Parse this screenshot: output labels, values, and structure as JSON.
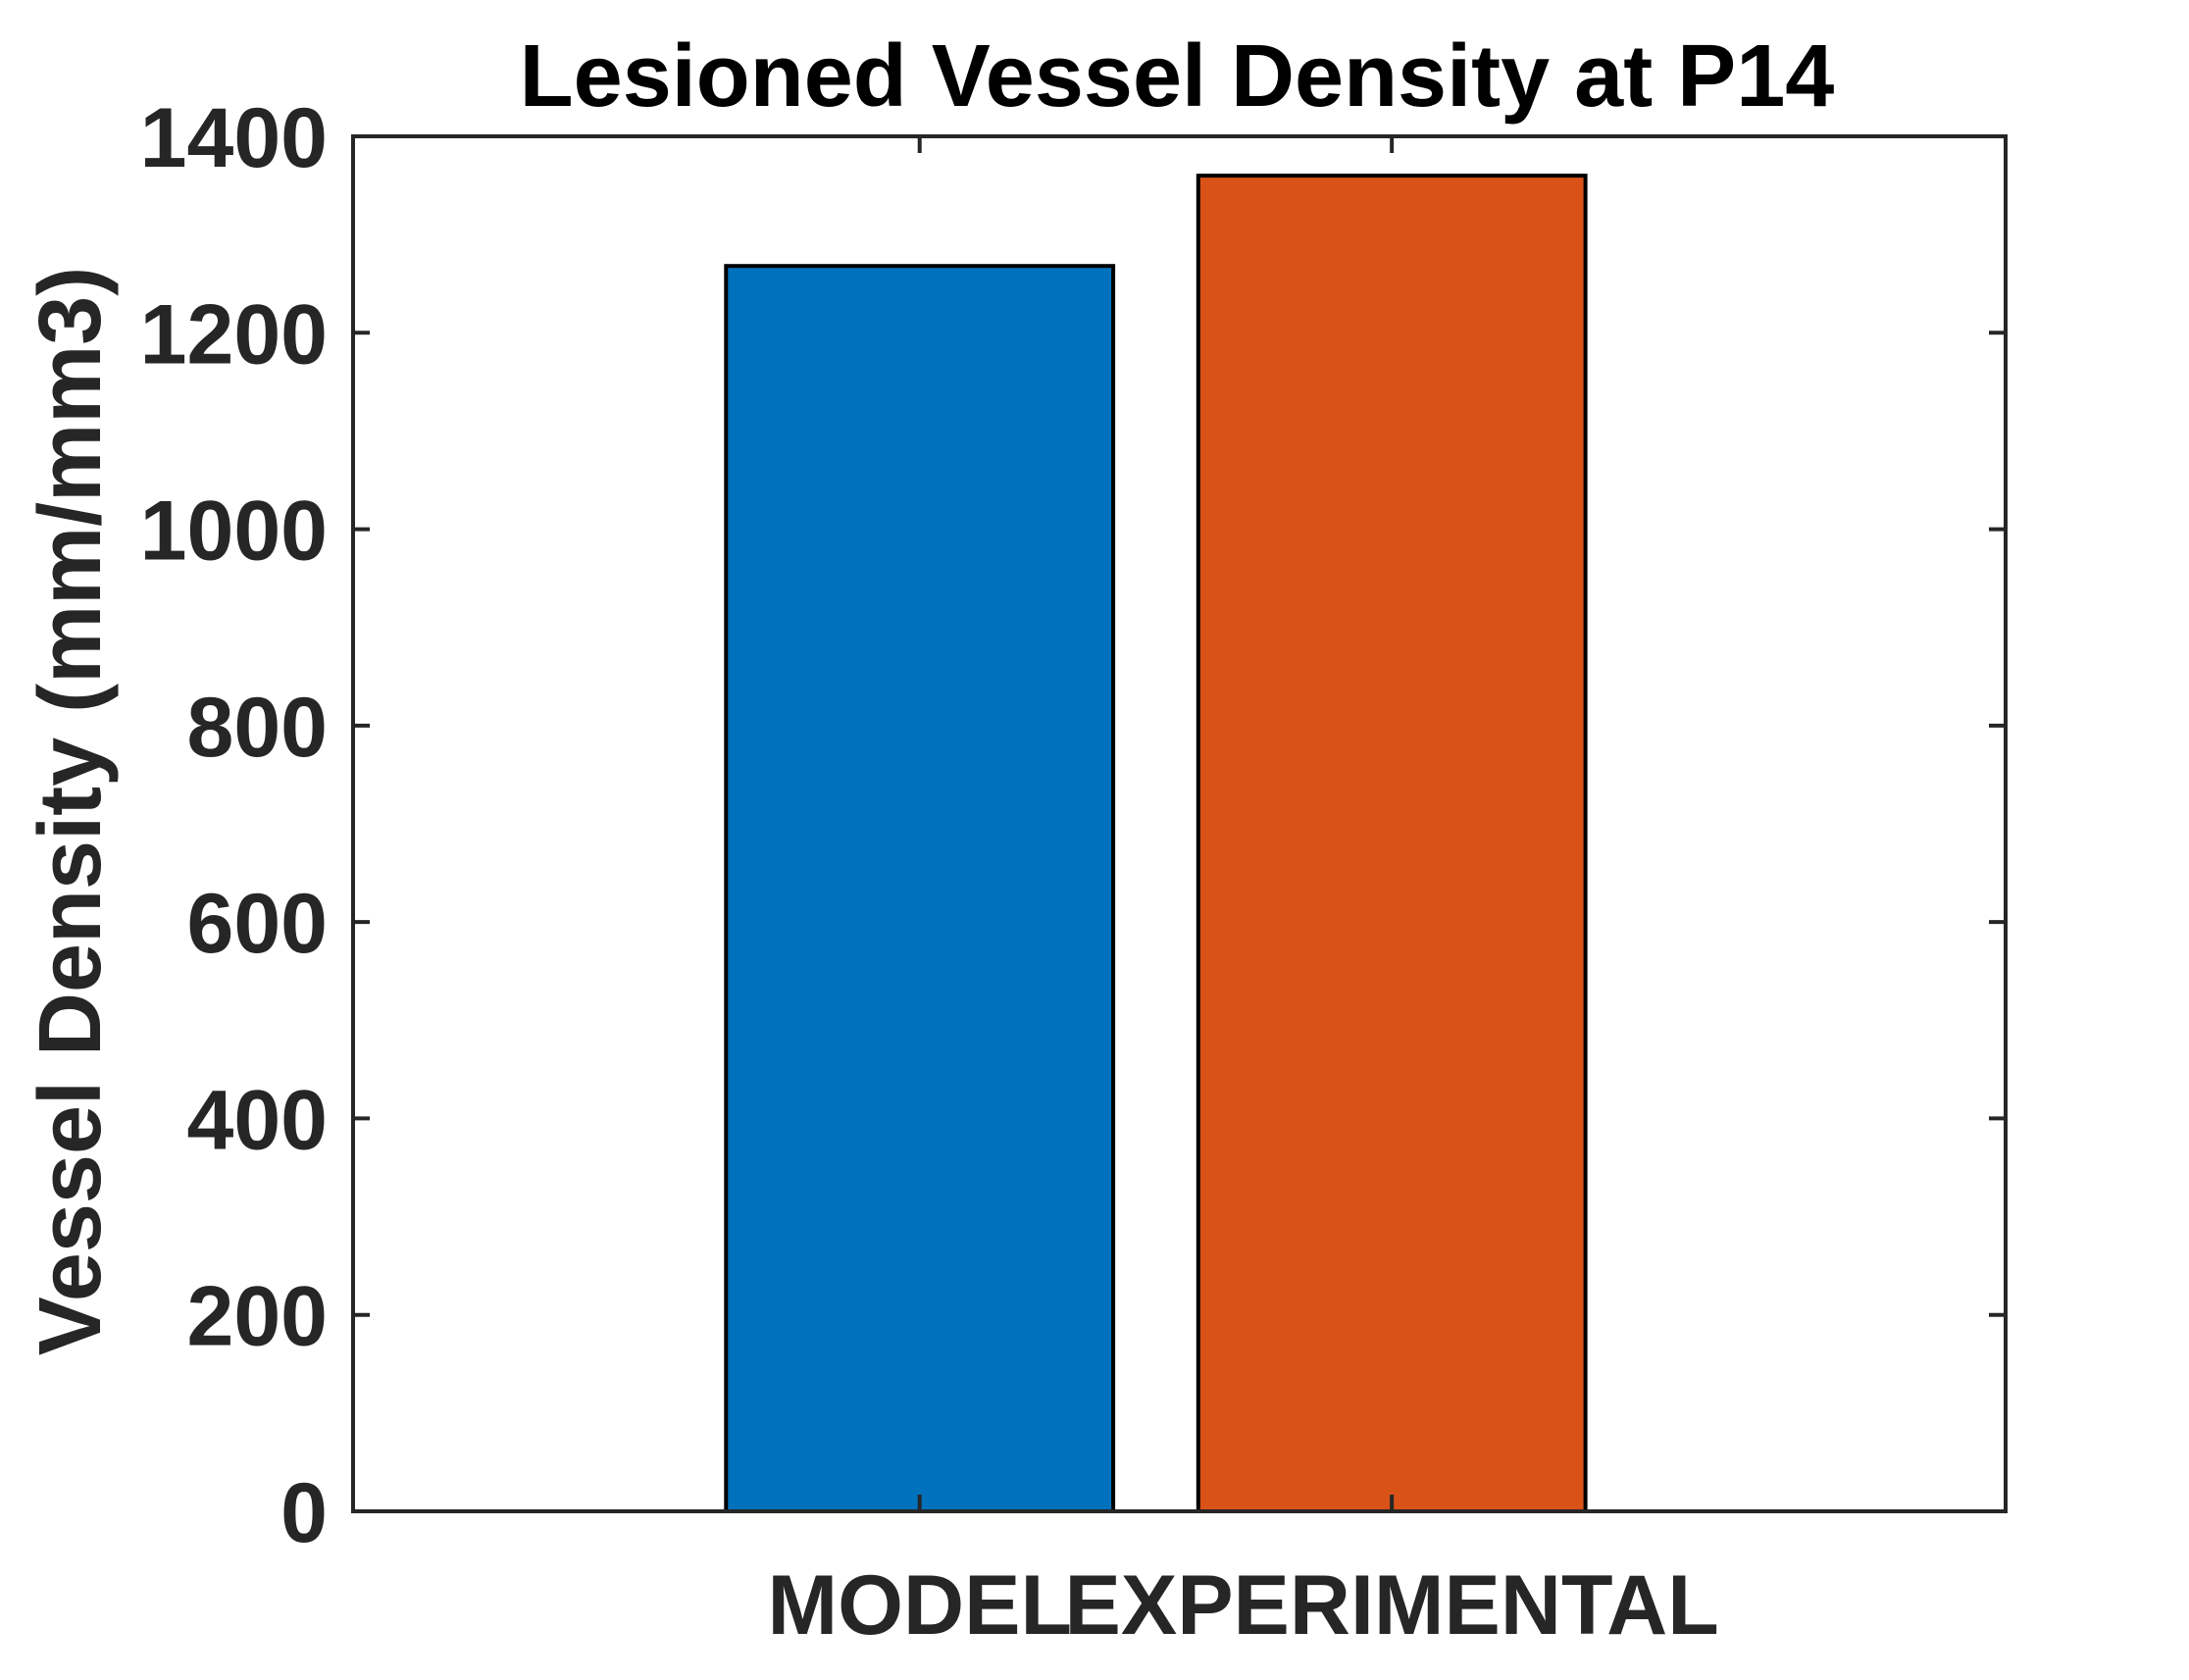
{
  "chart_data": {
    "type": "bar",
    "title": "Lesioned Vessel Density at P14",
    "xlabel": "",
    "ylabel": "Vessel Density (mm/mm3)",
    "categories": [
      "MODEL",
      "EXPERIMENTAL"
    ],
    "values": [
      1268,
      1360
    ],
    "bar_colors": [
      "#0072BD",
      "#D95319"
    ],
    "ylim": [
      0,
      1400
    ],
    "yticks": [
      0,
      200,
      400,
      600,
      800,
      1000,
      1200,
      1400
    ],
    "ytick_labels": [
      "0",
      "200",
      "400",
      "600",
      "800",
      "1000",
      "1200",
      "1400"
    ],
    "xlim": [
      0.5,
      4.0
    ],
    "x_positions": [
      1.7,
      2.7
    ],
    "bar_width": 0.82,
    "grid": false,
    "legend": "none",
    "box": true
  }
}
